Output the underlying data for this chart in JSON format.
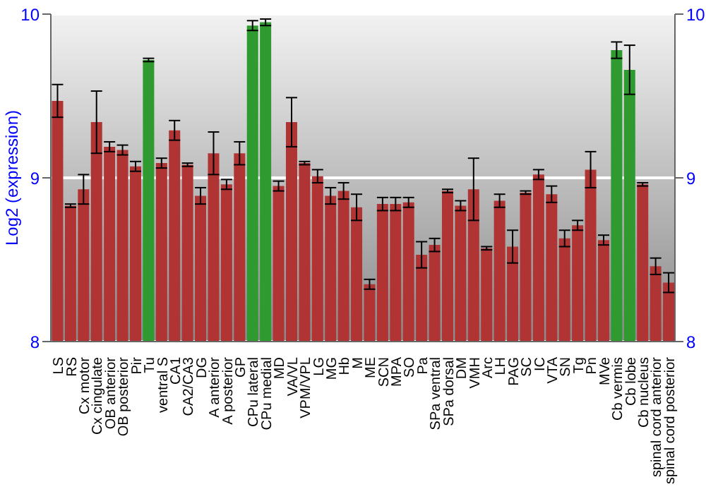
{
  "chart_data": {
    "type": "bar",
    "ylabel": "Log2 (expression)",
    "categories": [
      "LS",
      "RS",
      "Cx motor",
      "Cx cingulate",
      "OB anterior",
      "OB posterior",
      "Pir",
      "Tu",
      "ventral S",
      "CA1",
      "CA2/CA3",
      "DG",
      "A anterior",
      "A posterior",
      "GP",
      "CPu lateral",
      "CPu medial",
      "MD",
      "VA/VL",
      "VPM/VPL",
      "LG",
      "MG",
      "Hb",
      "M",
      "ME",
      "SCN",
      "MPA",
      "SO",
      "Pa",
      "SPa ventral",
      "SPa dorsal",
      "DM",
      "VMH",
      "Arc",
      "LH",
      "PAG",
      "SC",
      "IC",
      "VTA",
      "SN",
      "Tg",
      "Pn",
      "MVe",
      "Cb vermis",
      "Cb lobe",
      "Cb nucleus",
      "spinal cord anterior",
      "spinal cord posterior"
    ],
    "values": [
      9.47,
      8.83,
      8.93,
      9.34,
      9.19,
      9.17,
      9.07,
      9.72,
      9.09,
      9.29,
      9.08,
      8.89,
      9.15,
      8.96,
      9.15,
      9.93,
      9.95,
      8.95,
      9.34,
      9.09,
      9.01,
      8.89,
      8.92,
      8.82,
      8.35,
      8.84,
      8.84,
      8.85,
      8.53,
      8.59,
      8.92,
      8.83,
      8.93,
      8.57,
      8.86,
      8.58,
      8.91,
      9.02,
      8.9,
      8.63,
      8.71,
      9.05,
      8.62,
      9.78,
      9.66,
      8.96,
      8.46,
      8.36
    ],
    "errors": [
      0.1,
      0.01,
      0.09,
      0.19,
      0.03,
      0.03,
      0.03,
      0.01,
      0.03,
      0.06,
      0.01,
      0.05,
      0.13,
      0.03,
      0.07,
      0.03,
      0.02,
      0.03,
      0.15,
      0.01,
      0.04,
      0.05,
      0.05,
      0.08,
      0.03,
      0.04,
      0.04,
      0.03,
      0.08,
      0.04,
      0.01,
      0.03,
      0.19,
      0.01,
      0.04,
      0.1,
      0.01,
      0.03,
      0.05,
      0.05,
      0.03,
      0.11,
      0.03,
      0.05,
      0.15,
      0.01,
      0.05,
      0.06
    ],
    "colors": [
      "#b03434",
      "#b03434",
      "#b03434",
      "#b03434",
      "#b03434",
      "#b03434",
      "#b03434",
      "#2f9a2f",
      "#b03434",
      "#b03434",
      "#b03434",
      "#b03434",
      "#b03434",
      "#b03434",
      "#b03434",
      "#2f9a2f",
      "#2f9a2f",
      "#b03434",
      "#b03434",
      "#b03434",
      "#b03434",
      "#b03434",
      "#b03434",
      "#b03434",
      "#b03434",
      "#b03434",
      "#b03434",
      "#b03434",
      "#b03434",
      "#b03434",
      "#b03434",
      "#b03434",
      "#b03434",
      "#b03434",
      "#b03434",
      "#b03434",
      "#b03434",
      "#b03434",
      "#b03434",
      "#b03434",
      "#b03434",
      "#b03434",
      "#b03434",
      "#2f9a2f",
      "#2f9a2f",
      "#b03434",
      "#b03434",
      "#b03434"
    ],
    "ylim": [
      8,
      10
    ],
    "yticks": [
      8,
      9,
      10
    ],
    "y2lim": [
      8,
      10
    ],
    "y2ticks": [
      8,
      9,
      10
    ],
    "grid": "y"
  }
}
